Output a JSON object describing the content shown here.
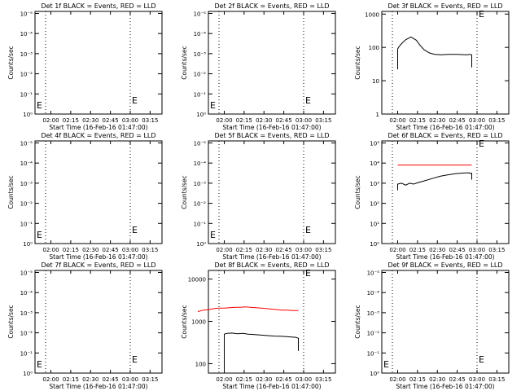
{
  "colors": {
    "events": "#000000",
    "lld": "#ff0000",
    "axis": "#000000"
  },
  "x_tick_labels": [
    "02:00",
    "02:15",
    "02:30",
    "02:45",
    "03:00",
    "03:15"
  ],
  "chart_data": [
    {
      "type": "line",
      "title": "Det 1f BLACK = Events, RED = LLD",
      "xlabel": "Start Time (16-Feb-16 01:47:00)",
      "ylabel": "Counts/sec",
      "y_scale": "log",
      "y_tick_labels": [
        "10⁰",
        "10⁻¹",
        "10⁻²",
        "10⁻³",
        "10⁻⁴",
        "10⁻⁵"
      ],
      "marker_label": "E",
      "series": []
    },
    {
      "type": "line",
      "title": "Det 2f BLACK = Events, RED = LLD",
      "xlabel": "Start Time (16-Feb-16 01:47:00)",
      "ylabel": "Counts/sec",
      "y_scale": "log",
      "y_tick_labels": [
        "10⁰",
        "10⁻¹",
        "10⁻²",
        "10⁻³",
        "10⁻⁴",
        "10⁻⁵"
      ],
      "marker_label": "E",
      "series": []
    },
    {
      "type": "line",
      "title": "Det 3f BLACK = Events, RED = LLD",
      "xlabel": "Start Time (16-Feb-16 01:47:00)",
      "ylabel": "Counts/sec",
      "y_scale": "log",
      "y_tick_labels": [
        "1",
        "10",
        "100",
        "1000"
      ],
      "marker_label": "E",
      "series": [
        {
          "color": "#000000",
          "x": [
            0,
            0,
            1,
            3,
            6,
            10,
            14,
            17,
            20,
            24,
            28,
            33,
            38,
            45,
            52,
            55,
            56,
            56
          ],
          "y": [
            22,
            90,
            105,
            130,
            170,
            205,
            165,
            115,
            85,
            68,
            62,
            60,
            62,
            62,
            60,
            62,
            60,
            25
          ]
        }
      ]
    },
    {
      "type": "line",
      "title": "Det 4f BLACK = Events, RED = LLD",
      "xlabel": "Start Time (16-Feb-16 01:47:00)",
      "ylabel": "Counts/sec",
      "y_scale": "log",
      "y_tick_labels": [
        "10⁰",
        "10⁻¹",
        "10⁻²",
        "10⁻³",
        "10⁻⁴",
        "10⁻⁵"
      ],
      "marker_label": "E",
      "series": []
    },
    {
      "type": "line",
      "title": "Det 5f BLACK = Events, RED = LLD",
      "xlabel": "Start Time (16-Feb-16 01:47:00)",
      "ylabel": "Counts/sec",
      "y_scale": "log",
      "y_tick_labels": [
        "10⁰",
        "10⁻¹",
        "10⁻²",
        "10⁻³",
        "10⁻⁴",
        "10⁻⁵"
      ],
      "marker_label": "E",
      "series": []
    },
    {
      "type": "line",
      "title": "Det 6f BLACK = Events, RED = LLD",
      "xlabel": "Start Time (16-Feb-16 01:47:00)",
      "ylabel": "Counts/sec",
      "y_scale": "log",
      "y_tick_labels": [
        "10⁰",
        "10¹",
        "10²",
        "10³",
        "10⁴",
        "10⁵"
      ],
      "marker_label": "E",
      "series": [
        {
          "color": "#ff0000",
          "x": [
            0,
            56
          ],
          "y": [
            8000,
            8000
          ]
        },
        {
          "color": "#000000",
          "x": [
            0,
            0,
            3,
            6,
            9,
            12,
            16,
            20,
            26,
            32,
            38,
            44,
            50,
            54,
            55,
            56,
            56
          ],
          "y": [
            450,
            900,
            1000,
            800,
            1000,
            900,
            1100,
            1300,
            1700,
            2200,
            2600,
            3000,
            3200,
            3300,
            3000,
            3100,
            1500
          ]
        }
      ]
    },
    {
      "type": "line",
      "title": "Det 7f BLACK = Events, RED = LLD",
      "xlabel": "Start Time (16-Feb-16 01:47:00)",
      "ylabel": "Counts/sec",
      "y_scale": "log",
      "y_tick_labels": [
        "10⁰",
        "10⁻¹",
        "10⁻²",
        "10⁻³",
        "10⁻⁴",
        "10⁻⁵"
      ],
      "marker_label": "E",
      "series": []
    },
    {
      "type": "line",
      "title": "Det 8f BLACK = Events, RED = LLD",
      "xlabel": "Start Time (16-Feb-16 01:47:00)",
      "ylabel": "Counts/sec",
      "y_scale": "log",
      "y_tick_labels": [
        "100",
        "1000",
        "10000"
      ],
      "marker_label": "E",
      "series": [
        {
          "color": "#ff0000",
          "x": [
            -20,
            -16,
            -12,
            -8,
            -4,
            0,
            4,
            8,
            12,
            16,
            20,
            24,
            28,
            32,
            36,
            40,
            44,
            48,
            52,
            56
          ],
          "y": [
            1700,
            1850,
            1900,
            2000,
            2050,
            2050,
            2100,
            2150,
            2150,
            2200,
            2150,
            2100,
            2050,
            2000,
            1950,
            1900,
            1850,
            1850,
            1800,
            1800
          ]
        },
        {
          "color": "#000000",
          "x": [
            0,
            0,
            2,
            6,
            10,
            14,
            18,
            22,
            26,
            30,
            34,
            38,
            42,
            46,
            50,
            54,
            56,
            56
          ],
          "y": [
            70,
            500,
            520,
            530,
            510,
            520,
            500,
            490,
            480,
            470,
            460,
            450,
            445,
            440,
            430,
            420,
            400,
            200
          ]
        }
      ]
    },
    {
      "type": "line",
      "title": "Det 9f BLACK = Events, RED = LLD",
      "xlabel": "Start Time (16-Feb-16 01:47:00)",
      "ylabel": "Counts/sec",
      "y_scale": "log",
      "y_tick_labels": [
        "10⁰",
        "10⁻¹",
        "10⁻²",
        "10⁻³",
        "10⁻⁴",
        "10⁻⁵"
      ],
      "marker_label": "E",
      "series": []
    }
  ]
}
